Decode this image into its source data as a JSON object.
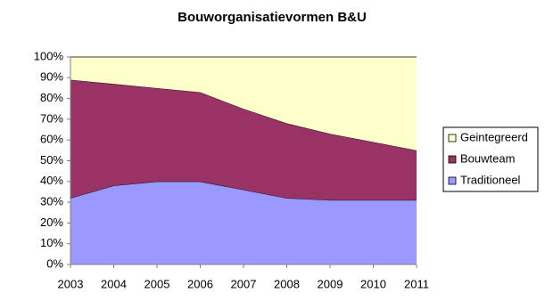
{
  "chart_data": {
    "type": "stacked-area",
    "title": "Bouworganisatievormen B&U",
    "categories": [
      "2003",
      "2004",
      "2005",
      "2006",
      "2007",
      "2008",
      "2009",
      "2010",
      "2011"
    ],
    "series": [
      {
        "name": "Traditioneel",
        "color": "#9999ff",
        "values": [
          32,
          38,
          40,
          40,
          36,
          32,
          31,
          31,
          31
        ]
      },
      {
        "name": "Bouwteam",
        "color": "#993366",
        "values": [
          57,
          49,
          45,
          43,
          39,
          36,
          32,
          28,
          24
        ]
      },
      {
        "name": "Geintegreerd",
        "color": "#ffffcc",
        "values": [
          11,
          13,
          15,
          17,
          25,
          32,
          37,
          41,
          45
        ]
      }
    ],
    "ylim": [
      0,
      100
    ],
    "yticks": [
      {
        "value": 0,
        "label": "0%"
      },
      {
        "value": 10,
        "label": "10%"
      },
      {
        "value": 20,
        "label": "20%"
      },
      {
        "value": 30,
        "label": "30%"
      },
      {
        "value": 40,
        "label": "40%"
      },
      {
        "value": 50,
        "label": "50%"
      },
      {
        "value": 60,
        "label": "60%"
      },
      {
        "value": 70,
        "label": "70%"
      },
      {
        "value": 80,
        "label": "80%"
      },
      {
        "value": 90,
        "label": "90%"
      },
      {
        "value": 100,
        "label": "100%"
      }
    ],
    "grid": false,
    "legend": "right"
  }
}
